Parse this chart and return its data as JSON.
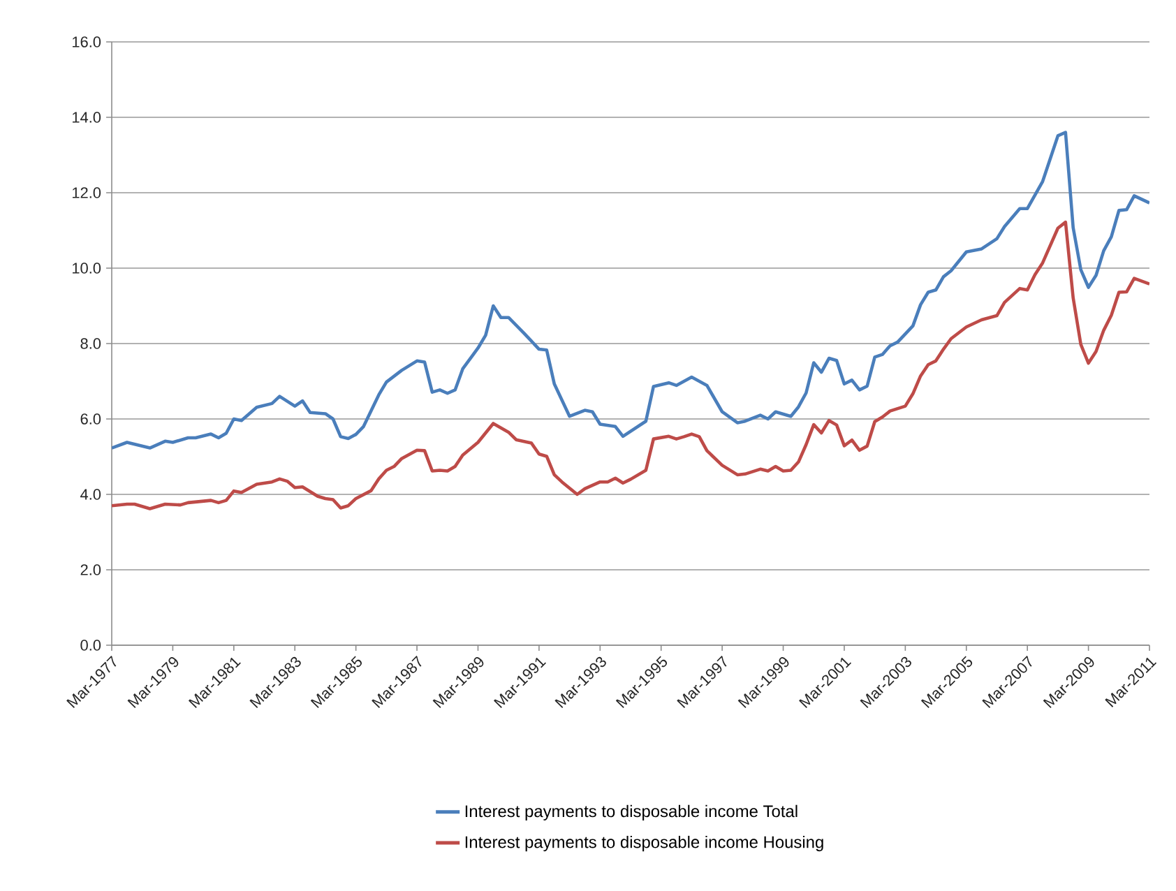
{
  "chart_data": {
    "type": "line",
    "xlim": [
      "1977-03",
      "2011-03"
    ],
    "xticks": [
      {
        "value": "1977-03",
        "label": "Mar-1977"
      },
      {
        "value": "1979-03",
        "label": "Mar-1979"
      },
      {
        "value": "1981-03",
        "label": "Mar-1981"
      },
      {
        "value": "1983-03",
        "label": "Mar-1983"
      },
      {
        "value": "1985-03",
        "label": "Mar-1985"
      },
      {
        "value": "1987-03",
        "label": "Mar-1987"
      },
      {
        "value": "1989-03",
        "label": "Mar-1989"
      },
      {
        "value": "1991-03",
        "label": "Mar-1991"
      },
      {
        "value": "1993-03",
        "label": "Mar-1993"
      },
      {
        "value": "1995-03",
        "label": "Mar-1995"
      },
      {
        "value": "1997-03",
        "label": "Mar-1997"
      },
      {
        "value": "1999-03",
        "label": "Mar-1999"
      },
      {
        "value": "2001-03",
        "label": "Mar-2001"
      },
      {
        "value": "2003-03",
        "label": "Mar-2003"
      },
      {
        "value": "2005-03",
        "label": "Mar-2005"
      },
      {
        "value": "2007-03",
        "label": "Mar-2007"
      },
      {
        "value": "2009-03",
        "label": "Mar-2009"
      },
      {
        "value": "2011-03",
        "label": "Mar-2011"
      }
    ],
    "ylim": [
      0,
      16
    ],
    "yticks": [
      {
        "value": 0,
        "label": "0.0"
      },
      {
        "value": 2,
        "label": "2.0"
      },
      {
        "value": 4,
        "label": "4.0"
      },
      {
        "value": 6,
        "label": "6.0"
      },
      {
        "value": 8,
        "label": "8.0"
      },
      {
        "value": 10,
        "label": "10.0"
      },
      {
        "value": 12,
        "label": "12.0"
      },
      {
        "value": 14,
        "label": "14.0"
      },
      {
        "value": 16,
        "label": "16.0"
      }
    ],
    "grid": "y",
    "legend": "bottom",
    "marker": "none",
    "line_style": "solid",
    "series": [
      {
        "name": "Interest payments to disposable income Total",
        "color": "#4a7ebb",
        "x": [
          "1977-03",
          "1977-09",
          "1978-06",
          "1978-12",
          "1979-03",
          "1979-09",
          "1979-12",
          "1980-06",
          "1980-09",
          "1980-12",
          "1981-03",
          "1981-06",
          "1981-12",
          "1982-06",
          "1982-09",
          "1983-03",
          "1983-06",
          "1983-09",
          "1984-03",
          "1984-06",
          "1984-09",
          "1984-12",
          "1985-03",
          "1985-06",
          "1985-12",
          "1986-03",
          "1986-09",
          "1987-03",
          "1987-06",
          "1987-09",
          "1987-12",
          "1988-03",
          "1988-06",
          "1988-09",
          "1989-03",
          "1989-06",
          "1989-09",
          "1989-12",
          "1990-03",
          "1990-09",
          "1991-03",
          "1991-06",
          "1991-09",
          "1992-03",
          "1992-09",
          "1992-12",
          "1993-03",
          "1993-09",
          "1993-12",
          "1994-09",
          "1994-12",
          "1995-06",
          "1995-09",
          "1996-03",
          "1996-09",
          "1997-03",
          "1997-09",
          "1997-12",
          "1998-06",
          "1998-09",
          "1998-12",
          "1999-06",
          "1999-09",
          "1999-12",
          "2000-03",
          "2000-06",
          "2000-09",
          "2000-12",
          "2001-03",
          "2001-06",
          "2001-09",
          "2001-12",
          "2002-03",
          "2002-06",
          "2002-09",
          "2002-12",
          "2003-06",
          "2003-09",
          "2003-12",
          "2004-03",
          "2004-06",
          "2004-09",
          "2005-03",
          "2005-09",
          "2006-03",
          "2006-06",
          "2006-12",
          "2007-03",
          "2007-09",
          "2008-03",
          "2008-06",
          "2008-09",
          "2008-12",
          "2009-03",
          "2009-06",
          "2009-09",
          "2009-12",
          "2010-03",
          "2010-06",
          "2010-09",
          "2011-03"
        ],
        "values": [
          5.23,
          5.38,
          5.23,
          5.41,
          5.38,
          5.5,
          5.5,
          5.6,
          5.5,
          5.62,
          6.0,
          5.96,
          6.31,
          6.41,
          6.6,
          6.34,
          6.48,
          6.17,
          6.14,
          6.0,
          5.53,
          5.48,
          5.59,
          5.8,
          6.64,
          6.98,
          7.29,
          7.54,
          7.51,
          6.71,
          6.77,
          6.68,
          6.77,
          7.33,
          7.88,
          8.22,
          9.0,
          8.69,
          8.69,
          8.28,
          7.85,
          7.83,
          6.93,
          6.07,
          6.23,
          6.19,
          5.86,
          5.8,
          5.54,
          5.94,
          6.86,
          6.96,
          6.89,
          7.11,
          6.89,
          6.19,
          5.9,
          5.94,
          6.1,
          6.0,
          6.19,
          6.07,
          6.32,
          6.69,
          7.49,
          7.24,
          7.61,
          7.55,
          6.93,
          7.03,
          6.77,
          6.87,
          7.64,
          7.71,
          7.94,
          8.04,
          8.47,
          9.03,
          9.36,
          9.42,
          9.77,
          9.93,
          10.43,
          10.51,
          10.78,
          11.1,
          11.58,
          11.58,
          12.3,
          13.51,
          13.6,
          11.07,
          9.96,
          9.49,
          9.81,
          10.46,
          10.83,
          11.53,
          11.55,
          11.92,
          11.73
        ]
      },
      {
        "name": "Interest payments to disposable income Housing",
        "color": "#be4b48",
        "x": [
          "1977-03",
          "1977-09",
          "1977-12",
          "1978-06",
          "1978-12",
          "1979-06",
          "1979-09",
          "1980-06",
          "1980-09",
          "1980-12",
          "1981-03",
          "1981-06",
          "1981-12",
          "1982-06",
          "1982-09",
          "1982-12",
          "1983-03",
          "1983-06",
          "1983-12",
          "1984-03",
          "1984-06",
          "1984-09",
          "1984-12",
          "1985-03",
          "1985-09",
          "1985-12",
          "1986-03",
          "1986-06",
          "1986-09",
          "1987-03",
          "1987-06",
          "1987-09",
          "1987-12",
          "1988-03",
          "1988-06",
          "1988-09",
          "1989-03",
          "1989-09",
          "1990-03",
          "1990-06",
          "1990-12",
          "1991-03",
          "1991-06",
          "1991-09",
          "1991-12",
          "1992-06",
          "1992-09",
          "1993-03",
          "1993-06",
          "1993-09",
          "1993-12",
          "1994-03",
          "1994-09",
          "1994-12",
          "1995-06",
          "1995-09",
          "1995-12",
          "1996-03",
          "1996-06",
          "1996-09",
          "1997-03",
          "1997-09",
          "1997-12",
          "1998-06",
          "1998-09",
          "1998-12",
          "1999-03",
          "1999-06",
          "1999-09",
          "1999-12",
          "2000-03",
          "2000-06",
          "2000-09",
          "2000-12",
          "2001-03",
          "2001-06",
          "2001-09",
          "2001-12",
          "2002-03",
          "2002-06",
          "2002-09",
          "2003-03",
          "2003-06",
          "2003-09",
          "2003-12",
          "2004-03",
          "2004-06",
          "2004-09",
          "2005-03",
          "2005-09",
          "2006-03",
          "2006-06",
          "2006-12",
          "2007-03",
          "2007-06",
          "2007-09",
          "2008-03",
          "2008-06",
          "2008-09",
          "2008-12",
          "2009-03",
          "2009-06",
          "2009-09",
          "2009-12",
          "2010-03",
          "2010-06",
          "2010-09",
          "2011-03"
        ],
        "values": [
          3.7,
          3.74,
          3.74,
          3.62,
          3.74,
          3.72,
          3.78,
          3.84,
          3.78,
          3.84,
          4.09,
          4.05,
          4.27,
          4.33,
          4.41,
          4.35,
          4.18,
          4.2,
          3.95,
          3.89,
          3.86,
          3.64,
          3.7,
          3.89,
          4.1,
          4.41,
          4.64,
          4.74,
          4.95,
          5.17,
          5.16,
          4.62,
          4.64,
          4.62,
          4.74,
          5.04,
          5.38,
          5.88,
          5.65,
          5.45,
          5.36,
          5.07,
          5.01,
          4.52,
          4.33,
          4.0,
          4.15,
          4.33,
          4.33,
          4.43,
          4.3,
          4.4,
          4.64,
          5.47,
          5.54,
          5.47,
          5.53,
          5.6,
          5.53,
          5.16,
          4.77,
          4.52,
          4.54,
          4.67,
          4.62,
          4.74,
          4.62,
          4.64,
          4.86,
          5.32,
          5.85,
          5.63,
          5.96,
          5.84,
          5.29,
          5.44,
          5.17,
          5.28,
          5.93,
          6.05,
          6.21,
          6.34,
          6.67,
          7.14,
          7.44,
          7.54,
          7.85,
          8.13,
          8.44,
          8.63,
          8.74,
          9.09,
          9.46,
          9.42,
          9.83,
          10.14,
          11.06,
          11.22,
          9.21,
          7.98,
          7.48,
          7.79,
          8.35,
          8.75,
          9.36,
          9.37,
          9.73,
          9.58
        ]
      }
    ]
  }
}
